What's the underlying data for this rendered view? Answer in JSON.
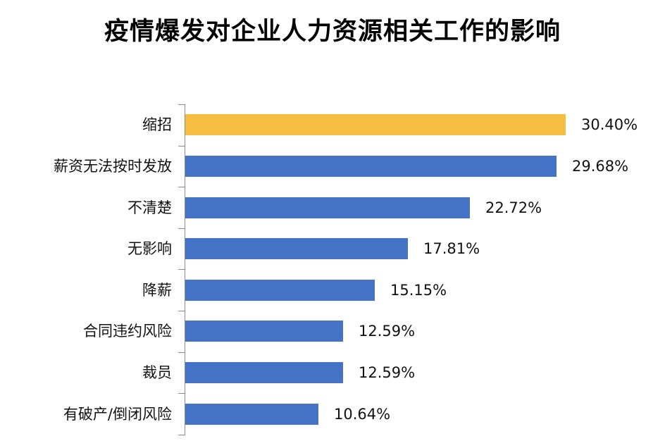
{
  "chart_data": {
    "type": "bar",
    "orientation": "horizontal",
    "title": "疫情爆发对企业人力资源相关工作的影响",
    "xlabel": "",
    "ylabel": "",
    "categories": [
      "缩招",
      "薪资无法按时发放",
      "不清楚",
      "无影响",
      "降薪",
      "合同违约风险",
      "裁员",
      "有破产/倒闭风险"
    ],
    "values": [
      30.4,
      29.68,
      22.72,
      17.81,
      15.15,
      12.59,
      12.59,
      10.64
    ],
    "value_labels": [
      "30.40%",
      "29.68%",
      "22.72%",
      "17.81%",
      "15.15%",
      "12.59%",
      "12.59%",
      "10.64%"
    ],
    "unit": "%",
    "grid": false,
    "legend": null,
    "highlight_index": 0,
    "colors": {
      "highlight": "#F6BE41",
      "default": "#4472C4"
    }
  }
}
